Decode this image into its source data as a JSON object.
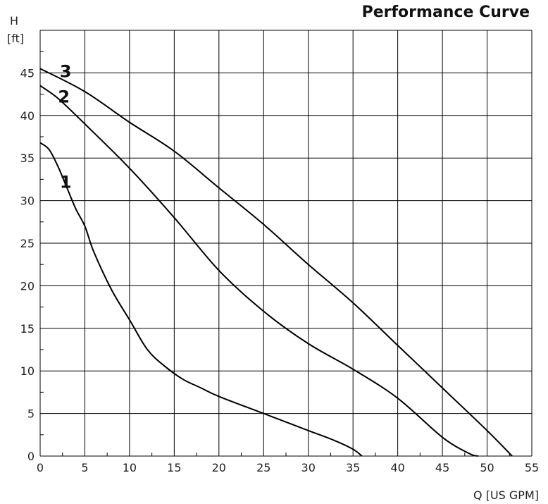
{
  "chart_data": {
    "type": "line",
    "title": "Performance Curve",
    "ylabel": "H",
    "ylabel_unit": "[ft]",
    "xlabel": "Q [US GPM]",
    "xlim": [
      0,
      55
    ],
    "ylim": [
      0,
      50
    ],
    "grid": true,
    "x_ticks": [
      0,
      5,
      10,
      15,
      20,
      25,
      30,
      35,
      40,
      45,
      50,
      55
    ],
    "y_ticks": [
      0,
      5,
      10,
      15,
      20,
      25,
      30,
      35,
      40,
      45
    ],
    "series": [
      {
        "name": "1",
        "points": [
          [
            0,
            36.8
          ],
          [
            1,
            36
          ],
          [
            2,
            34
          ],
          [
            3,
            31.5
          ],
          [
            4,
            29
          ],
          [
            5,
            27
          ],
          [
            6,
            24
          ],
          [
            8,
            19.5
          ],
          [
            10,
            16
          ],
          [
            12,
            12.5
          ],
          [
            14,
            10.5
          ],
          [
            16,
            9
          ],
          [
            18,
            8
          ],
          [
            20,
            7
          ],
          [
            25,
            5
          ],
          [
            30,
            3
          ],
          [
            33,
            1.8
          ],
          [
            35,
            0.8
          ],
          [
            36,
            0
          ]
        ]
      },
      {
        "name": "2",
        "points": [
          [
            0,
            43.5
          ],
          [
            2,
            42
          ],
          [
            5,
            39
          ],
          [
            10,
            33.8
          ],
          [
            15,
            28
          ],
          [
            20,
            21.8
          ],
          [
            25,
            17
          ],
          [
            30,
            13.2
          ],
          [
            35,
            10.2
          ],
          [
            40,
            6.8
          ],
          [
            45,
            2.2
          ],
          [
            48,
            0.3
          ],
          [
            49,
            0
          ]
        ]
      },
      {
        "name": "3",
        "points": [
          [
            0,
            45.5
          ],
          [
            5,
            42.8
          ],
          [
            10,
            39.2
          ],
          [
            15,
            35.8
          ],
          [
            20,
            31.5
          ],
          [
            25,
            27.2
          ],
          [
            30,
            22.5
          ],
          [
            35,
            18
          ],
          [
            40,
            13
          ],
          [
            45,
            8
          ],
          [
            50,
            3
          ],
          [
            52.8,
            0
          ]
        ]
      }
    ]
  }
}
